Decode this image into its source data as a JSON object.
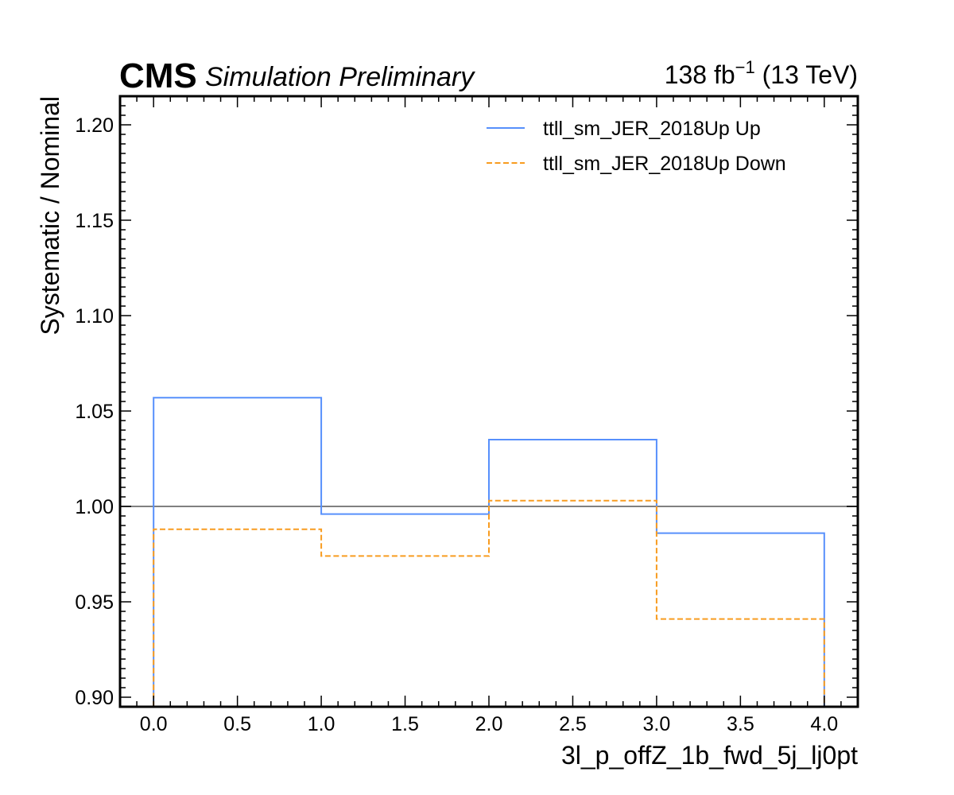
{
  "header": {
    "experiment": "CMS",
    "status": "Simulation Preliminary",
    "lumi_value": "138 fb",
    "lumi_exponent": "−1",
    "energy": " (13 TeV)"
  },
  "chart_data": {
    "type": "line",
    "drawstyle": "steps",
    "xlabel": "3l_p_offZ_1b_fwd_5j_lj0pt",
    "ylabel": "Systematic / Nominal",
    "xlim": [
      -0.2,
      4.2
    ],
    "ylim": [
      0.895,
      1.215
    ],
    "xticks": [
      0.0,
      0.5,
      1.0,
      1.5,
      2.0,
      2.5,
      3.0,
      3.5,
      4.0
    ],
    "xtick_labels": [
      "0.0",
      "0.5",
      "1.0",
      "1.5",
      "2.0",
      "2.5",
      "3.0",
      "3.5",
      "4.0"
    ],
    "yticks": [
      0.9,
      0.95,
      1.0,
      1.05,
      1.1,
      1.15,
      1.2
    ],
    "ytick_labels": [
      "0.90",
      "0.95",
      "1.00",
      "1.05",
      "1.10",
      "1.15",
      "1.20"
    ],
    "bin_edges": [
      0,
      1,
      2,
      3,
      4
    ],
    "reference_line": 1.0,
    "legend_position": "top-right",
    "grid": false,
    "series": [
      {
        "name": "ttll_sm_JER_2018Up Up",
        "values": [
          1.057,
          0.996,
          1.035,
          0.986
        ],
        "color": "#5790fc",
        "style": "solid"
      },
      {
        "name": "ttll_sm_JER_2018Up Down",
        "values": [
          0.988,
          0.974,
          1.003,
          0.941
        ],
        "color": "#f89c20",
        "style": "dashed"
      }
    ],
    "reference_color": "#808080"
  }
}
